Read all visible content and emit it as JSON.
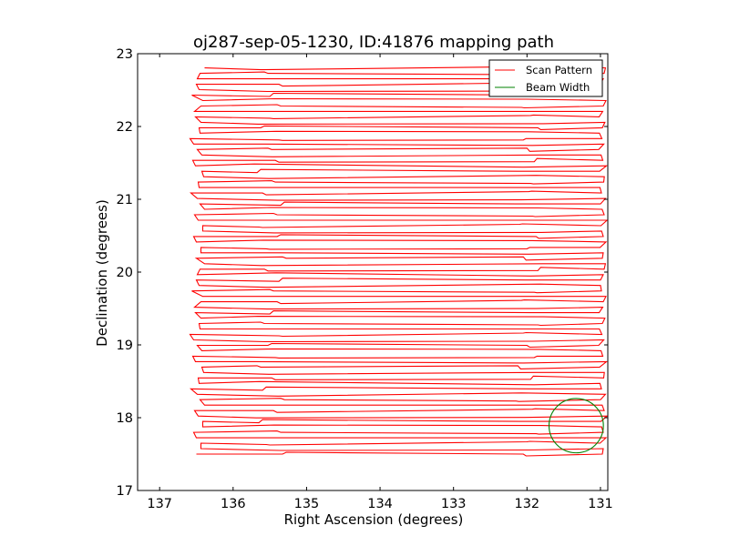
{
  "chart_data": {
    "type": "line",
    "title": "oj287-sep-05-1230, ID:41876 mapping path",
    "xlabel": "Right Ascension (degrees)",
    "ylabel": "Declination (degrees)",
    "xlim": [
      137.3,
      130.9
    ],
    "ylim": [
      17,
      23
    ],
    "x_ticks": [
      137,
      136,
      135,
      134,
      133,
      132,
      131
    ],
    "y_ticks": [
      17,
      18,
      19,
      20,
      21,
      22,
      23
    ],
    "x_tick_labels": [
      "137",
      "136",
      "135",
      "134",
      "133",
      "132",
      "131"
    ],
    "y_tick_labels": [
      "17",
      "18",
      "19",
      "20",
      "21",
      "22",
      "23"
    ],
    "grid": false,
    "legend_position": "top-right",
    "series": [
      {
        "name": "Scan Pattern",
        "color": "#ff0000",
        "kind": "raster-scan",
        "ra_west": 136.5,
        "ra_east": 130.95,
        "dec_start": 17.5,
        "dec_end": 22.73,
        "row_count": 36
      },
      {
        "name": "Beam Width",
        "color": "#008000",
        "kind": "circle",
        "center": [
          131.33,
          17.89
        ],
        "radius_deg": 0.37
      }
    ]
  }
}
